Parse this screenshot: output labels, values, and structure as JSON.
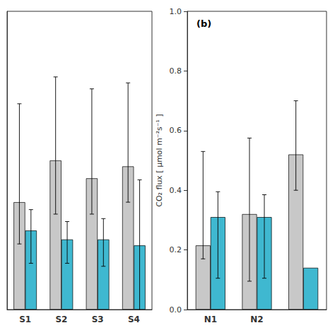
{
  "chart_data": [
    {
      "type": "bar",
      "categories": [
        "S1",
        "S2",
        "S3",
        "S4"
      ],
      "series": [
        {
          "color": "#c8c8c8",
          "values": [
            0.36,
            0.5,
            0.44,
            0.48
          ],
          "error_up": [
            0.33,
            0.28,
            0.3,
            0.28
          ],
          "error_down": [
            0.14,
            0.18,
            0.12,
            0.12
          ]
        },
        {
          "color": "#3fb8d0",
          "values": [
            0.265,
            0.235,
            0.235,
            0.215
          ],
          "error_up": [
            0.07,
            0.06,
            0.07,
            0.22
          ],
          "error_down": [
            0.11,
            0.08,
            0.09,
            0.23
          ]
        }
      ],
      "ylim": [
        0,
        1.0
      ],
      "tick_labels": "x",
      "grid": false
    },
    {
      "type": "bar",
      "categories": [
        "N1",
        "N2",
        null
      ],
      "series": [
        {
          "color": "#c8c8c8",
          "values": [
            0.215,
            0.32,
            0.52
          ],
          "error_up": [
            0.315,
            0.255,
            0.18
          ],
          "error_down": [
            0.045,
            0.225,
            0.12
          ]
        },
        {
          "color": "#3fb8d0",
          "values": [
            0.31,
            0.31,
            0.14
          ],
          "error_up": [
            0.085,
            0.075,
            null
          ],
          "error_down": [
            0.205,
            0.205,
            null
          ]
        }
      ],
      "ylabel": "CO₂ flux [ μmol m⁻²s⁻¹ ]",
      "ylim": [
        0,
        1.0
      ],
      "yticks": [
        {
          "value": 0,
          "label": "0.0"
        },
        0.2,
        0.4,
        0.6,
        0.8,
        {
          "value": 1.0,
          "label": "1.0"
        }
      ],
      "annotations": [
        "(b)"
      ],
      "grid": false
    }
  ]
}
